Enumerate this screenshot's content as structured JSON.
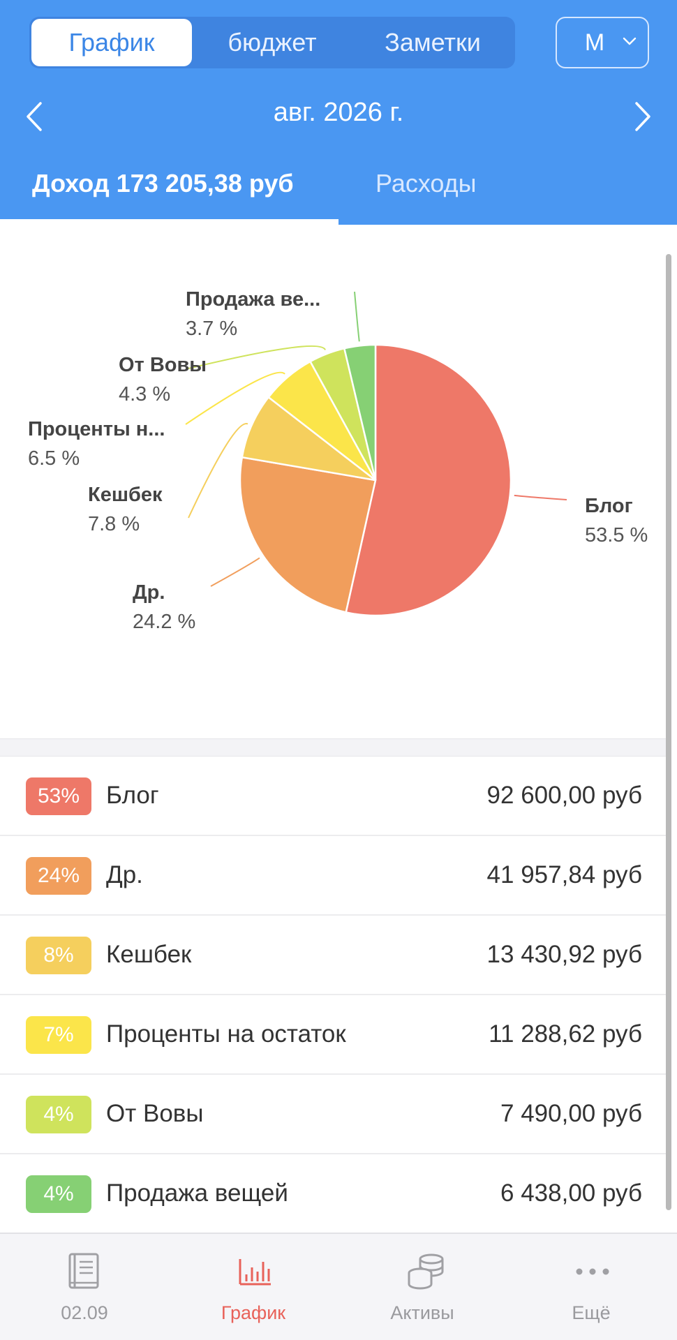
{
  "header": {
    "segments": [
      {
        "label": "График",
        "active": true
      },
      {
        "label": "бюджет",
        "active": false
      },
      {
        "label": "Заметки",
        "active": false
      }
    ],
    "period": {
      "label": "М",
      "icon": "chevron-down-icon"
    },
    "month": "авг. 2026 г.",
    "tabs": {
      "income": "Доход 173 205,38 руб",
      "expense": "Расходы"
    }
  },
  "chart_data": {
    "type": "pie",
    "title": "",
    "slices": [
      {
        "name": "Блог",
        "label": "Блог",
        "percent": 53.5,
        "percent_label": "53.5 %",
        "color": "#ee7868"
      },
      {
        "name": "Др.",
        "label": "Др.",
        "percent": 24.2,
        "percent_label": "24.2 %",
        "color": "#f19e5c"
      },
      {
        "name": "Кешбек",
        "label": "Кешбек",
        "percent": 7.8,
        "percent_label": "7.8 %",
        "color": "#f5cf5d"
      },
      {
        "name": "Проценты на остаток",
        "label": "Проценты н...",
        "percent": 6.5,
        "percent_label": "6.5 %",
        "color": "#fbe54a"
      },
      {
        "name": "От Вовы",
        "label": "От Вовы",
        "percent": 4.3,
        "percent_label": "4.3 %",
        "color": "#cfe35c"
      },
      {
        "name": "Продажа вещей",
        "label": "Продажа ве...",
        "percent": 3.7,
        "percent_label": "3.7 %",
        "color": "#86d074"
      }
    ]
  },
  "list": [
    {
      "badge": "53%",
      "name": "Блог",
      "amount": "92 600,00 руб",
      "color": "#ee7868"
    },
    {
      "badge": "24%",
      "name": "Др.",
      "amount": "41 957,84 руб",
      "color": "#f19e5c"
    },
    {
      "badge": "8%",
      "name": "Кешбек",
      "amount": "13 430,92 руб",
      "color": "#f5cf5d"
    },
    {
      "badge": "7%",
      "name": "Проценты на остаток",
      "amount": "11 288,62 руб",
      "color": "#fbe54a"
    },
    {
      "badge": "4%",
      "name": "От Вовы",
      "amount": "7 490,00 руб",
      "color": "#cfe35c"
    },
    {
      "badge": "4%",
      "name": "Продажа вещей",
      "amount": "6 438,00 руб",
      "color": "#86d074"
    }
  ],
  "bottom_nav": [
    {
      "label": "02.09",
      "icon": "book-icon",
      "active": false
    },
    {
      "label": "График",
      "icon": "bar-chart-icon",
      "active": true
    },
    {
      "label": "Активы",
      "icon": "coins-icon",
      "active": false
    },
    {
      "label": "Ещё",
      "icon": "more-icon",
      "active": false
    }
  ],
  "colors": {
    "header": "#4a97f2",
    "accent": "#e8625a"
  }
}
